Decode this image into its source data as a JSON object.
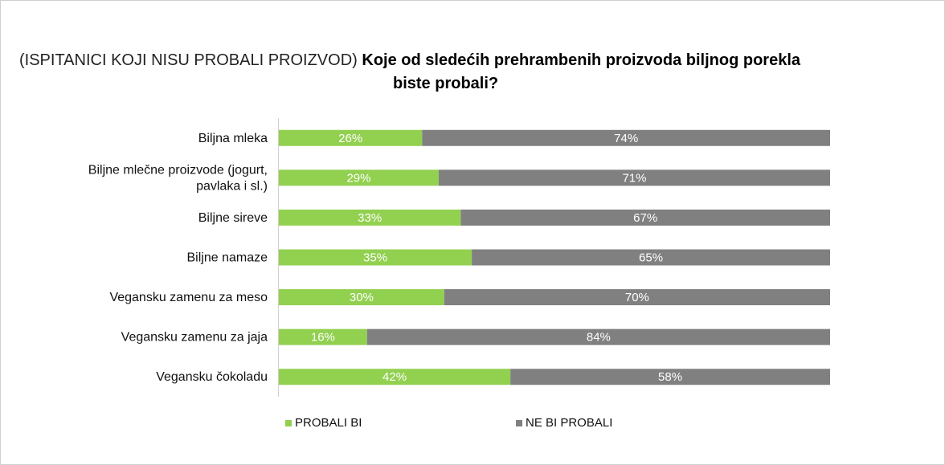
{
  "title": {
    "prefix": "(ISPITANICI KOJI NISU PROBALI PROIZVOD)",
    "line1": "Koje od sledećih prehrambenih proizvoda biljnog porekla",
    "line2": "biste probali?"
  },
  "chart_data": {
    "type": "bar",
    "orientation": "horizontal-stacked-100",
    "categories": [
      [
        "Biljna mleka"
      ],
      [
        "Biljne mlečne proizvode (jogurt,",
        "pavlaka i sl.)"
      ],
      [
        "Biljne sireve"
      ],
      [
        "Biljne namaze"
      ],
      [
        "Vegansku zamenu za meso"
      ],
      [
        "Vegansku zamenu za jaja"
      ],
      [
        "Vegansku čokoladu"
      ]
    ],
    "series": [
      {
        "name": "PROBALI BI",
        "color": "#92d050",
        "values": [
          26,
          29,
          33,
          35,
          30,
          16,
          42
        ]
      },
      {
        "name": "NE BI PROBALI",
        "color": "#808080",
        "values": [
          74,
          71,
          67,
          65,
          70,
          84,
          58
        ]
      }
    ],
    "value_suffix": "%",
    "xlim": [
      0,
      100
    ],
    "legend_position": "bottom"
  }
}
